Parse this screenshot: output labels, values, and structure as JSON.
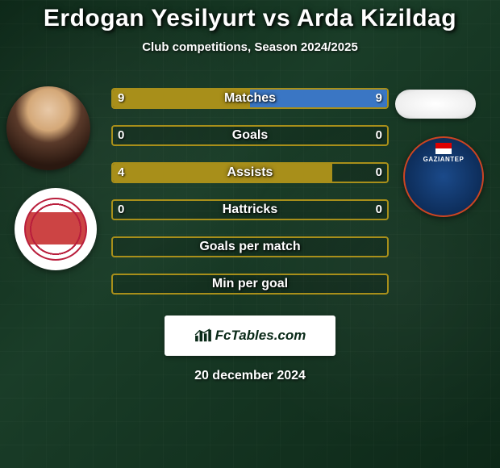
{
  "title": "Erdogan Yesilyurt vs Arda Kizildag",
  "subtitle": "Club competitions, Season 2024/2025",
  "date": "20 december 2024",
  "brand": "FcTables.com",
  "colors": {
    "left_accent": "#a88f1a",
    "right_accent": "#3a76c4",
    "background_dark": "#0d2818",
    "text": "#ffffff"
  },
  "stats": [
    {
      "label": "Matches",
      "left_val": "9",
      "right_val": "9",
      "left_pct": 50,
      "right_pct": 50,
      "left_color": "#a88f1a",
      "right_color": "#3a76c4",
      "border_color": "#a88f1a"
    },
    {
      "label": "Goals",
      "left_val": "0",
      "right_val": "0",
      "left_pct": 0,
      "right_pct": 0,
      "left_color": "#a88f1a",
      "right_color": "#3a76c4",
      "border_color": "#a88f1a"
    },
    {
      "label": "Assists",
      "left_val": "4",
      "right_val": "0",
      "left_pct": 80,
      "right_pct": 0,
      "left_color": "#a88f1a",
      "right_color": "#3a76c4",
      "border_color": "#a88f1a"
    },
    {
      "label": "Hattricks",
      "left_val": "0",
      "right_val": "0",
      "left_pct": 0,
      "right_pct": 0,
      "left_color": "#a88f1a",
      "right_color": "#3a76c4",
      "border_color": "#a88f1a"
    },
    {
      "label": "Goals per match",
      "left_val": "",
      "right_val": "",
      "left_pct": 0,
      "right_pct": 0,
      "left_color": "#a88f1a",
      "right_color": "#3a76c4",
      "border_color": "#a88f1a"
    },
    {
      "label": "Min per goal",
      "left_val": "",
      "right_val": "",
      "left_pct": 0,
      "right_pct": 0,
      "left_color": "#a88f1a",
      "right_color": "#3a76c4",
      "border_color": "#a88f1a"
    }
  ]
}
